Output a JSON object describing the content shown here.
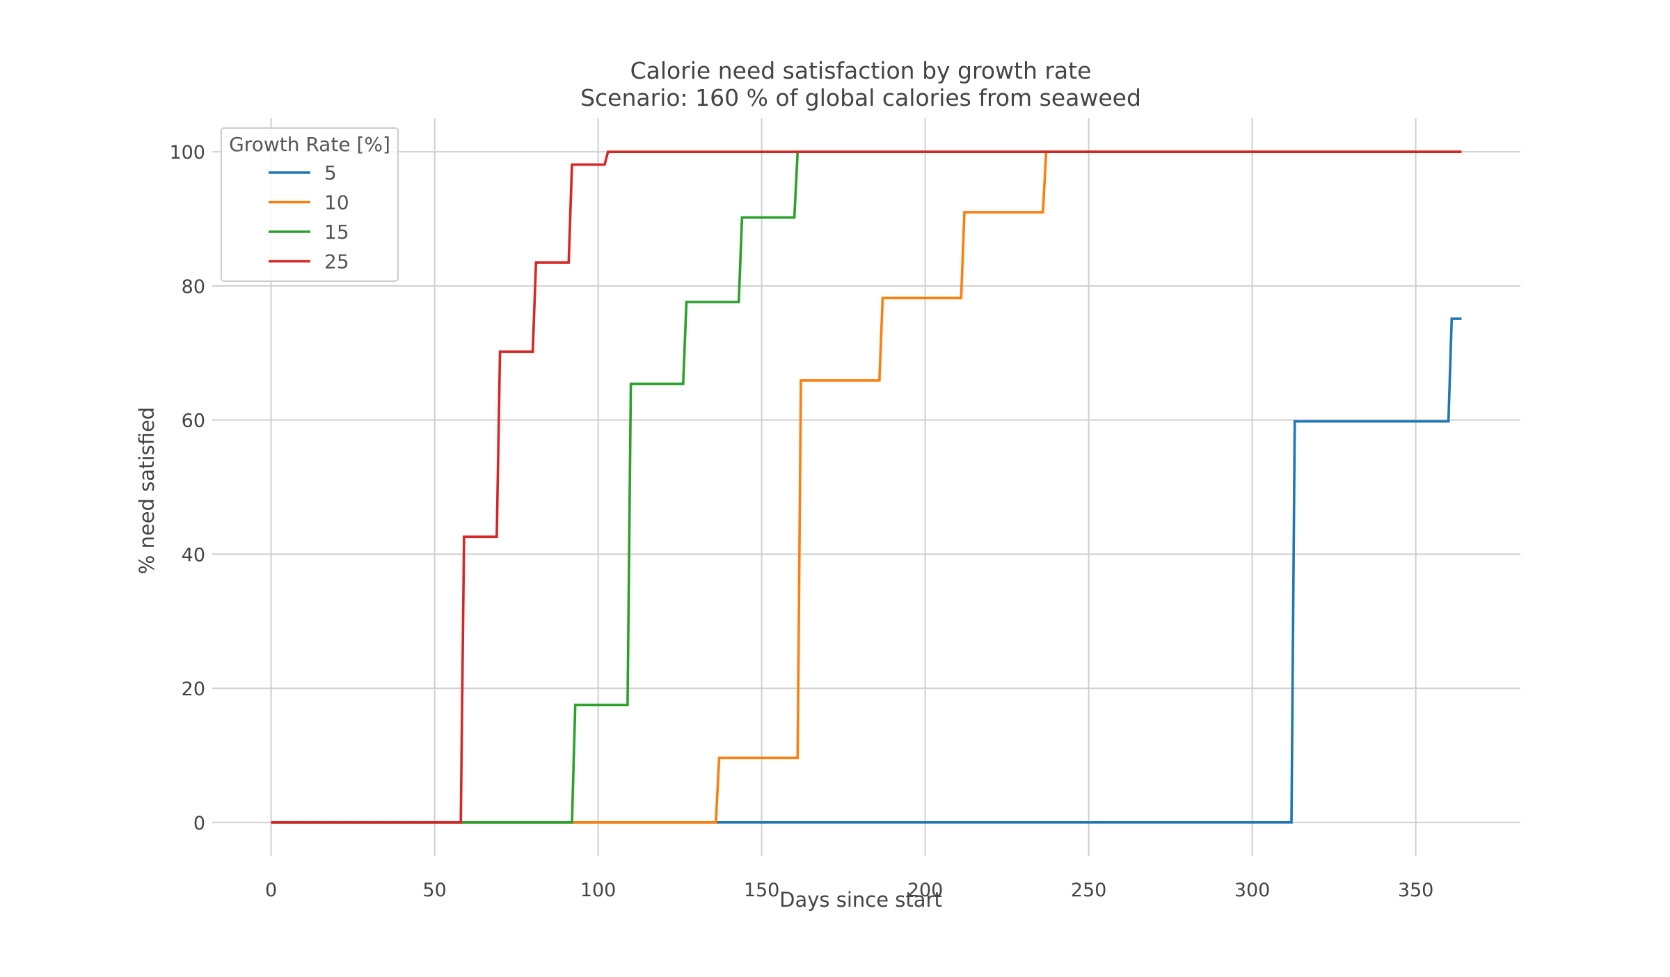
{
  "chart_data": {
    "type": "line",
    "step": true,
    "title": "Calorie need satisfaction by growth rate",
    "subtitle": "Scenario: 160 % of global calories from seaweed",
    "xlabel": "Days since start",
    "ylabel": "% need satisfied",
    "xlim": [
      -18,
      382
    ],
    "ylim": [
      -5,
      105
    ],
    "xticks": [
      0,
      50,
      100,
      150,
      200,
      250,
      300,
      350
    ],
    "yticks": [
      0,
      20,
      40,
      60,
      80,
      100
    ],
    "grid": true,
    "legend": {
      "title": "Growth Rate [%]",
      "placement": "top-left"
    },
    "series": [
      {
        "name": "5",
        "color": "#1f77b4",
        "points": [
          [
            0,
            0
          ],
          [
            312,
            0
          ],
          [
            313,
            59.8
          ],
          [
            360,
            59.8
          ],
          [
            361,
            75.1
          ],
          [
            364,
            75.1
          ]
        ]
      },
      {
        "name": "10",
        "color": "#ff7f0e",
        "points": [
          [
            0,
            0
          ],
          [
            136,
            0
          ],
          [
            137,
            9.6
          ],
          [
            161,
            9.6
          ],
          [
            162,
            65.9
          ],
          [
            186,
            65.9
          ],
          [
            187,
            78.2
          ],
          [
            211,
            78.2
          ],
          [
            212,
            91.0
          ],
          [
            236,
            91.0
          ],
          [
            237,
            100
          ],
          [
            364,
            100
          ]
        ]
      },
      {
        "name": "15",
        "color": "#2ca02c",
        "points": [
          [
            0,
            0
          ],
          [
            92,
            0
          ],
          [
            93,
            17.5
          ],
          [
            109,
            17.5
          ],
          [
            110,
            65.4
          ],
          [
            126,
            65.4
          ],
          [
            127,
            77.6
          ],
          [
            143,
            77.6
          ],
          [
            144,
            90.2
          ],
          [
            160,
            90.2
          ],
          [
            161,
            100
          ],
          [
            364,
            100
          ]
        ]
      },
      {
        "name": "25",
        "color": "#d62728",
        "points": [
          [
            0,
            0
          ],
          [
            58,
            0
          ],
          [
            59,
            42.6
          ],
          [
            69,
            42.6
          ],
          [
            70,
            70.2
          ],
          [
            80,
            70.2
          ],
          [
            81,
            83.5
          ],
          [
            91,
            83.5
          ],
          [
            92,
            98.1
          ],
          [
            102,
            98.1
          ],
          [
            103,
            100
          ],
          [
            364,
            100
          ]
        ]
      }
    ]
  }
}
